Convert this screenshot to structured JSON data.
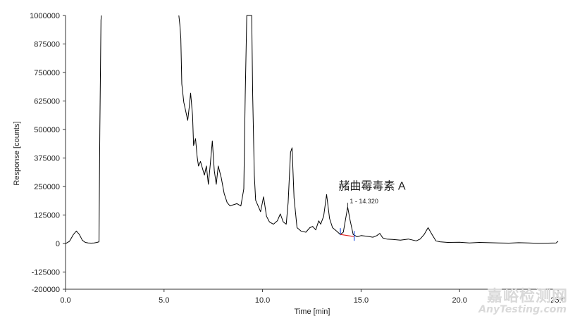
{
  "chart_data": {
    "type": "line",
    "title": "",
    "xlabel": "Time [min]",
    "ylabel": "Response [counts]",
    "xlim": [
      0,
      25
    ],
    "ylim": [
      -200000,
      1000000
    ],
    "x_ticks": [
      "0.0",
      "5.0",
      "10.0",
      "15.0",
      "20.0",
      "25.0"
    ],
    "y_ticks": [
      "1000000",
      "875000",
      "750000",
      "625000",
      "500000",
      "375000",
      "250000",
      "125000",
      "0",
      "-125000",
      "-200000"
    ],
    "grid": false,
    "legend": "none",
    "line_color": "#000000",
    "series": [
      {
        "x": [
          0.0,
          0.2,
          0.4,
          0.55,
          0.7,
          0.85,
          1.0,
          1.15,
          1.3,
          1.45,
          1.6,
          1.7,
          1.74,
          1.8,
          1.82,
          5.75,
          5.8,
          5.85,
          5.9,
          6.0,
          6.1,
          6.2,
          6.28,
          6.35,
          6.45,
          6.5,
          6.6,
          6.68,
          6.75,
          6.85,
          6.95,
          7.05,
          7.15,
          7.25,
          7.35,
          7.45,
          7.55,
          7.65,
          7.75,
          7.9,
          8.05,
          8.2,
          8.35,
          8.5,
          8.7,
          8.9,
          9.05,
          9.12,
          9.2,
          9.28,
          9.45,
          9.5,
          9.58,
          9.65,
          9.75,
          9.9,
          10.05,
          10.2,
          10.35,
          10.55,
          10.75,
          10.9,
          11.05,
          11.2,
          11.3,
          11.42,
          11.5,
          11.6,
          11.75,
          11.95,
          12.2,
          12.4,
          12.55,
          12.7,
          12.85,
          12.95,
          13.1,
          13.25,
          13.4,
          13.55,
          13.75,
          13.95,
          14.1,
          14.2,
          14.32,
          14.45,
          14.6,
          14.8,
          15.0,
          15.3,
          15.6,
          15.8,
          15.95,
          16.1,
          16.3,
          16.6,
          17.0,
          17.4,
          17.8,
          18.0,
          18.2,
          18.4,
          18.6,
          18.8,
          19.0,
          19.4,
          20.0,
          20.5,
          21.0,
          21.5,
          22.0,
          22.5,
          23.0,
          23.5,
          24.0,
          24.5,
          24.9,
          25.0
        ],
        "y": [
          0,
          10000,
          40000,
          55000,
          40000,
          15000,
          5000,
          3000,
          2000,
          3000,
          5000,
          8000,
          500000,
          980000,
          1000000,
          1000000,
          960000,
          900000,
          700000,
          620000,
          580000,
          540000,
          600000,
          660000,
          560000,
          430000,
          460000,
          380000,
          340000,
          360000,
          330000,
          300000,
          340000,
          260000,
          350000,
          450000,
          320000,
          260000,
          340000,
          290000,
          220000,
          180000,
          165000,
          170000,
          175000,
          165000,
          240000,
          650000,
          1000000,
          1000000,
          1000000,
          650000,
          300000,
          190000,
          170000,
          140000,
          205000,
          120000,
          95000,
          85000,
          100000,
          130000,
          95000,
          85000,
          180000,
          400000,
          420000,
          200000,
          70000,
          55000,
          50000,
          70000,
          75000,
          60000,
          100000,
          85000,
          120000,
          215000,
          110000,
          70000,
          55000,
          40000,
          50000,
          100000,
          160000,
          100000,
          40000,
          30000,
          35000,
          32000,
          28000,
          35000,
          45000,
          25000,
          20000,
          18000,
          15000,
          20000,
          12000,
          20000,
          40000,
          70000,
          40000,
          12000,
          8000,
          5000,
          6000,
          3000,
          5000,
          4000,
          3000,
          2000,
          4000,
          3000,
          1000,
          2000,
          3000,
          10000
        ]
      }
    ],
    "annotations": [
      {
        "text": "赭曲霉毒素 A",
        "x": 14.32,
        "y": 255000
      },
      {
        "text": "1 - 14.320",
        "x": 14.32,
        "y": 185000
      }
    ],
    "integration_markers": {
      "baseline_start_x": 13.95,
      "baseline_end_x": 14.65,
      "colors": [
        "#2050e0",
        "#e02020"
      ]
    }
  },
  "watermark": {
    "cn": "嘉峪检测网",
    "en": "AnyTesting.com"
  }
}
